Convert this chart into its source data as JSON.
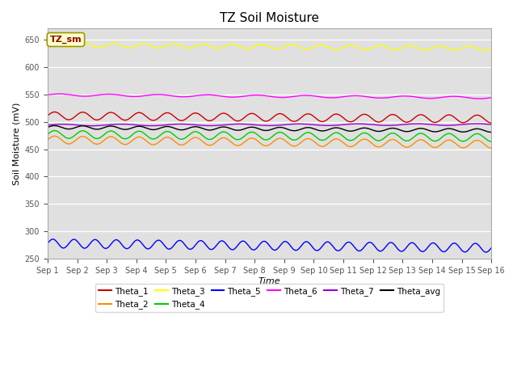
{
  "title": "TZ Soil Moisture",
  "xlabel": "Time",
  "ylabel": "Soil Moisture (mV)",
  "ylim": [
    250,
    670
  ],
  "yticks": [
    250,
    300,
    350,
    400,
    450,
    500,
    550,
    600,
    650
  ],
  "xlim": [
    0,
    15
  ],
  "xtick_labels": [
    "Sep 1",
    "Sep 2",
    "Sep 3",
    "Sep 4",
    "Sep 5",
    "Sep 6",
    "Sep 7",
    "Sep 8",
    "Sep 9",
    "Sep 10",
    "Sep 11",
    "Sep 12",
    "Sep 13",
    "Sep 14",
    "Sep 15",
    "Sep 16"
  ],
  "n_points": 1500,
  "bg_color": "#e0e0e0",
  "series": [
    {
      "name": "Theta_1",
      "color": "#cc0000",
      "base": 511,
      "amp": 7,
      "freq": 1.05,
      "trend": -6
    },
    {
      "name": "Theta_2",
      "color": "#ff8c00",
      "base": 467,
      "amp": 7,
      "freq": 1.05,
      "trend": -8
    },
    {
      "name": "Theta_3",
      "color": "#ffff00",
      "base": 640,
      "amp": 4,
      "freq": 1.0,
      "trend": -6
    },
    {
      "name": "Theta_4",
      "color": "#00cc00",
      "base": 477,
      "amp": 7,
      "freq": 1.05,
      "trend": -6
    },
    {
      "name": "Theta_5",
      "color": "#0000ff",
      "base": 278,
      "amp": 8,
      "freq": 1.4,
      "trend": -8
    },
    {
      "name": "Theta_6",
      "color": "#ff00ff",
      "base": 549,
      "amp": 2,
      "freq": 0.6,
      "trend": -5
    },
    {
      "name": "Theta_7",
      "color": "#9900cc",
      "base": 494,
      "amp": 1.5,
      "freq": 0.5,
      "trend": 1
    },
    {
      "name": "Theta_avg",
      "color": "#000000",
      "base": 490,
      "amp": 3,
      "freq": 1.05,
      "trend": -6
    }
  ],
  "legend_label": "TZ_sm",
  "legend_label_color": "#8b0000",
  "legend_box_facecolor": "#ffffcc",
  "legend_box_edgecolor": "#999900"
}
